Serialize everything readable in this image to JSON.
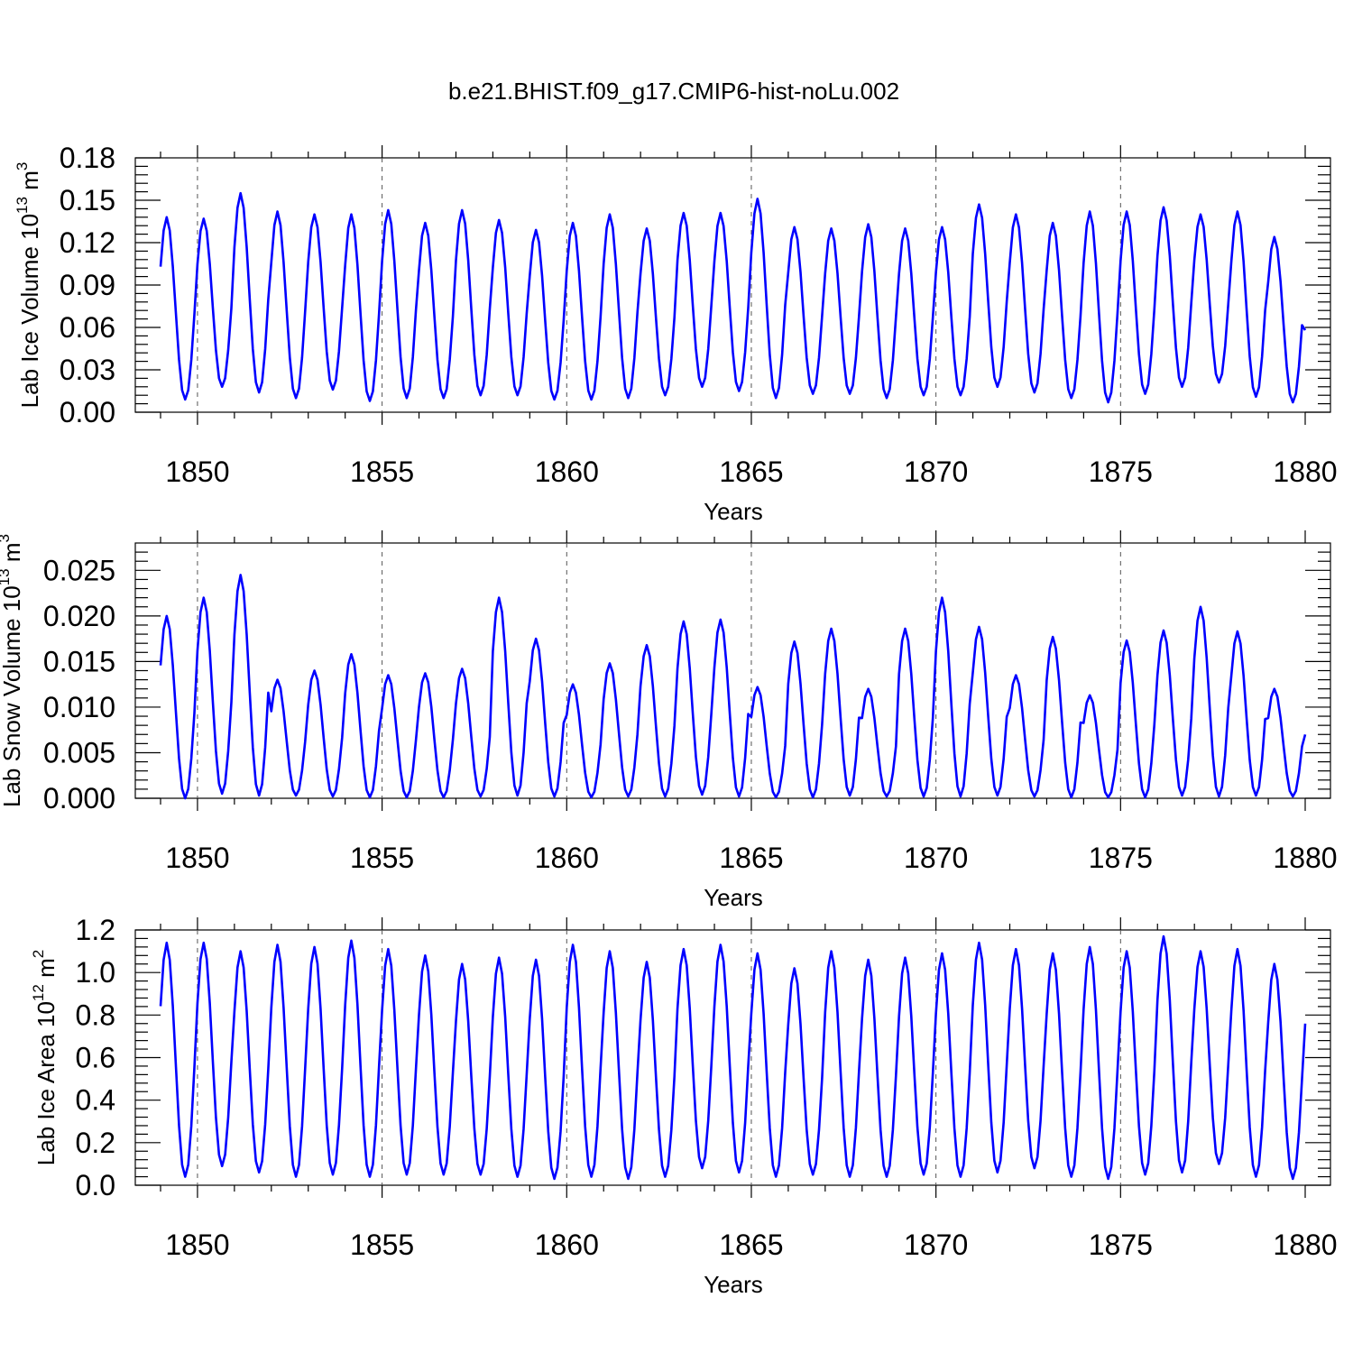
{
  "figure": {
    "title": "b.e21.BHIST.f09_g17.CMIP6-hist-noLu.002",
    "line_color": "#0000ff"
  },
  "chart_data": [
    {
      "type": "line",
      "name": "ice-volume",
      "xlabel": "Years",
      "ylabel_main": "Lab Ice Volume 10",
      "ylabel_exp": "13",
      "ylabel_unit": " m",
      "ylabel_unit_exp": "3",
      "xlim": [
        1849.0,
        1880.0
      ],
      "ylim": [
        0.0,
        0.18
      ],
      "xticks": [
        1850,
        1855,
        1860,
        1865,
        1870,
        1875,
        1880
      ],
      "xtick_labels": [
        "1850",
        "1855",
        "1860",
        "1865",
        "1870",
        "1875",
        "1880"
      ],
      "yticks": [
        0.0,
        0.03,
        0.06,
        0.09,
        0.12,
        0.15,
        0.18
      ],
      "ytick_labels": [
        "0.00",
        "0.03",
        "0.06",
        "0.09",
        "0.12",
        "0.15",
        "0.18"
      ],
      "vlines": [
        1850,
        1855,
        1860,
        1865,
        1870,
        1875
      ],
      "start_year": 1849.0,
      "step_years": 0.08333,
      "annual_peaks": [
        0.138,
        0.137,
        0.155,
        0.142,
        0.14,
        0.14,
        0.143,
        0.134,
        0.143,
        0.136,
        0.129,
        0.134,
        0.14,
        0.13,
        0.141,
        0.141,
        0.151,
        0.131,
        0.13,
        0.133,
        0.13,
        0.131,
        0.147,
        0.14,
        0.134,
        0.142,
        0.142,
        0.145,
        0.14,
        0.142,
        0.124
      ],
      "annual_troughs": [
        0.009,
        0.018,
        0.014,
        0.01,
        0.016,
        0.008,
        0.01,
        0.01,
        0.012,
        0.012,
        0.009,
        0.009,
        0.01,
        0.012,
        0.018,
        0.015,
        0.01,
        0.013,
        0.013,
        0.01,
        0.012,
        0.012,
        0.018,
        0.014,
        0.01,
        0.007,
        0.013,
        0.018,
        0.021,
        0.011,
        0.007
      ],
      "end_value": 0.058,
      "x": [],
      "y": []
    },
    {
      "type": "line",
      "name": "snow-volume",
      "xlabel": "Years",
      "ylabel_main": "Lab Snow Volume 10",
      "ylabel_exp": "13",
      "ylabel_unit": " m",
      "ylabel_unit_exp": "3",
      "xlim": [
        1849.0,
        1880.0
      ],
      "ylim": [
        0.0,
        0.028
      ],
      "xticks": [
        1850,
        1855,
        1860,
        1865,
        1870,
        1875,
        1880
      ],
      "xtick_labels": [
        "1850",
        "1855",
        "1860",
        "1865",
        "1870",
        "1875",
        "1880"
      ],
      "yticks": [
        0.0,
        0.005,
        0.01,
        0.015,
        0.02,
        0.025
      ],
      "ytick_labels": [
        "0.000",
        "0.005",
        "0.010",
        "0.015",
        "0.020",
        "0.025"
      ],
      "vlines": [
        1850,
        1855,
        1860,
        1865,
        1870,
        1875
      ],
      "start_year": 1849.0,
      "step_years": 0.08333,
      "annual_peaks": [
        0.02,
        0.022,
        0.0245,
        0.013,
        0.014,
        0.0158,
        0.0135,
        0.0137,
        0.0142,
        0.022,
        0.0175,
        0.0125,
        0.0148,
        0.0168,
        0.0194,
        0.0196,
        0.0122,
        0.0172,
        0.0186,
        0.012,
        0.0186,
        0.022,
        0.0188,
        0.0135,
        0.0177,
        0.0113,
        0.0173,
        0.0184,
        0.021,
        0.0183,
        0.012
      ],
      "annual_troughs": [
        0.0,
        0.0005,
        0.0003,
        0.0003,
        0.0002,
        0.0001,
        0.0001,
        0.0001,
        0.0002,
        0.0003,
        0.0002,
        0.0001,
        0.0002,
        0.0002,
        0.0004,
        0.0002,
        0.0001,
        0.0001,
        0.0003,
        0.0002,
        0.0002,
        0.0002,
        0.0003,
        0.0002,
        0.0001,
        0.0001,
        0.0001,
        0.0003,
        0.0002,
        0.0003,
        0.0002
      ],
      "end_value": 0.007,
      "x": [],
      "y": []
    },
    {
      "type": "line",
      "name": "ice-area",
      "xlabel": "Years",
      "ylabel_main": "Lab Ice Area 10",
      "ylabel_exp": "12",
      "ylabel_unit": " m",
      "ylabel_unit_exp": "2",
      "xlim": [
        1849.0,
        1880.0
      ],
      "ylim": [
        0.0,
        1.2
      ],
      "xticks": [
        1850,
        1855,
        1860,
        1865,
        1870,
        1875,
        1880
      ],
      "xtick_labels": [
        "1850",
        "1855",
        "1860",
        "1865",
        "1870",
        "1875",
        "1880"
      ],
      "yticks": [
        0.0,
        0.2,
        0.4,
        0.6,
        0.8,
        1.0,
        1.2
      ],
      "ytick_labels": [
        "0.0",
        "0.2",
        "0.4",
        "0.6",
        "0.8",
        "1.0",
        "1.2"
      ],
      "vlines": [
        1850,
        1855,
        1860,
        1865,
        1870,
        1875
      ],
      "start_year": 1849.0,
      "step_years": 0.08333,
      "annual_peaks": [
        1.14,
        1.14,
        1.1,
        1.13,
        1.12,
        1.15,
        1.11,
        1.08,
        1.04,
        1.07,
        1.06,
        1.13,
        1.1,
        1.05,
        1.11,
        1.13,
        1.09,
        1.02,
        1.1,
        1.06,
        1.07,
        1.09,
        1.14,
        1.11,
        1.09,
        1.12,
        1.1,
        1.17,
        1.1,
        1.11,
        1.04
      ],
      "annual_troughs": [
        0.04,
        0.09,
        0.06,
        0.04,
        0.05,
        0.04,
        0.05,
        0.05,
        0.05,
        0.04,
        0.03,
        0.04,
        0.03,
        0.04,
        0.08,
        0.06,
        0.04,
        0.05,
        0.04,
        0.04,
        0.05,
        0.04,
        0.06,
        0.08,
        0.04,
        0.03,
        0.05,
        0.06,
        0.1,
        0.04,
        0.03
      ],
      "end_value": 0.76,
      "x": [],
      "y": []
    }
  ]
}
